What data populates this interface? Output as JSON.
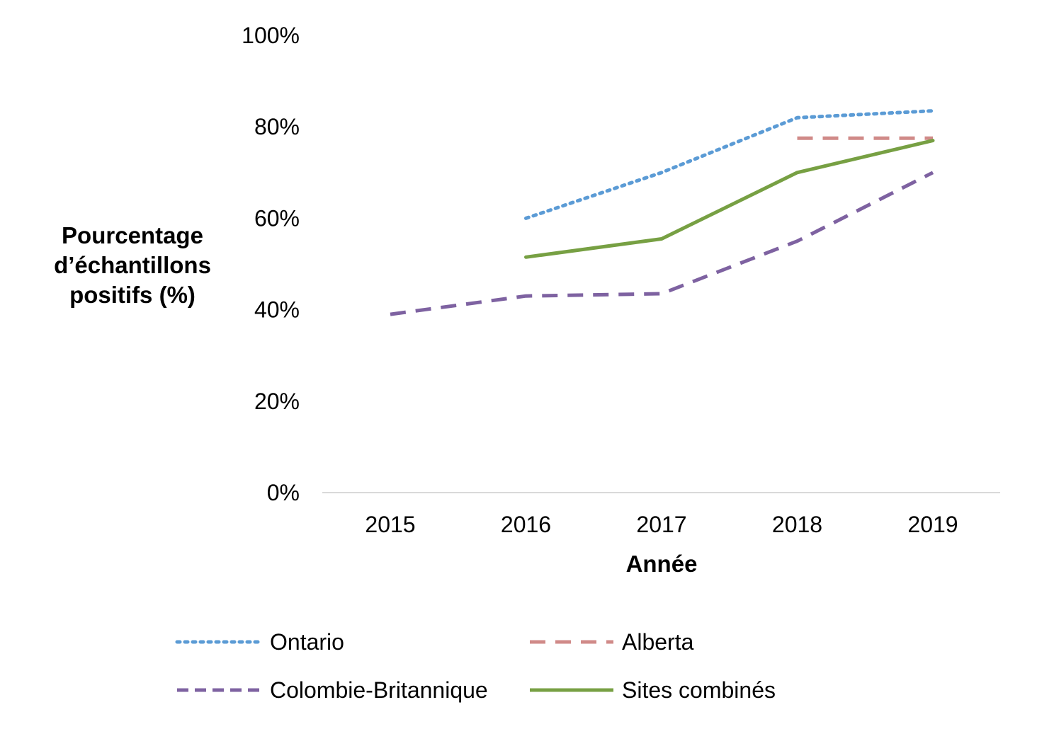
{
  "chart_data": {
    "type": "line",
    "title": "",
    "xlabel": "Année",
    "ylabel_lines": [
      "Pourcentage",
      "d’échantillons",
      "positifs (%)"
    ],
    "categories": [
      "2015",
      "2016",
      "2017",
      "2018",
      "2019"
    ],
    "y_ticks": [
      "0%",
      "20%",
      "40%",
      "60%",
      "80%",
      "100%"
    ],
    "ylim": [
      0,
      100
    ],
    "grid": false,
    "legend_position": "bottom",
    "series": [
      {
        "name": "Ontario",
        "color": "#5B9BD5",
        "style": "dotted",
        "values": [
          null,
          60,
          70,
          82,
          83.5
        ]
      },
      {
        "name": "Alberta",
        "color": "#D08A88",
        "style": "dashed",
        "values": [
          null,
          null,
          null,
          77.5,
          77.5
        ]
      },
      {
        "name": "Colombie-Britannique",
        "color": "#7E62A1",
        "style": "dashed",
        "values": [
          39,
          43,
          43.5,
          55,
          70
        ]
      },
      {
        "name": "Sites combinés",
        "color": "#77A043",
        "style": "solid",
        "values": [
          null,
          51.5,
          55.5,
          70,
          77
        ]
      }
    ]
  }
}
